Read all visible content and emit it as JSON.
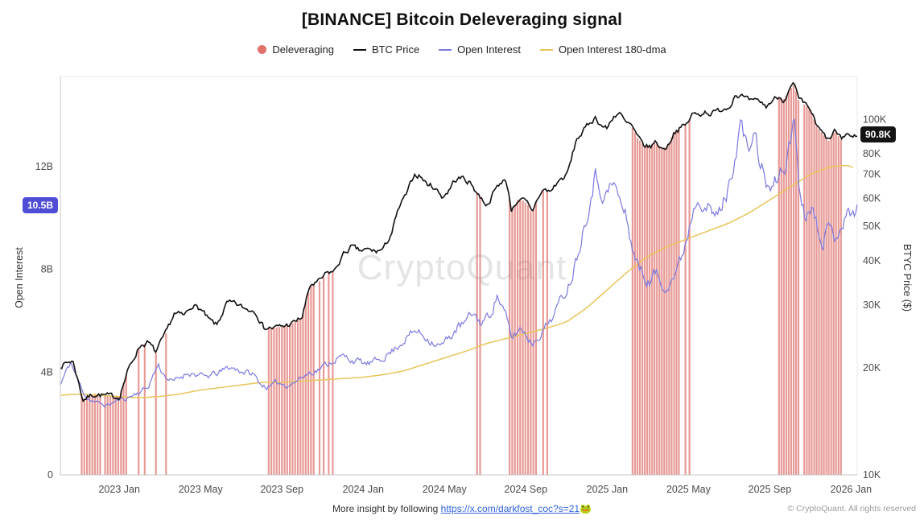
{
  "title": "[BINANCE] Bitcoin Deleveraging signal",
  "legend": {
    "items": [
      {
        "label": "Deleveraging",
        "color": "#e0716b",
        "marker": "circle"
      },
      {
        "label": "BTC Price",
        "color": "#111111",
        "marker": "line"
      },
      {
        "label": "Open Interest",
        "color": "#7b79e0",
        "marker": "line"
      },
      {
        "label": "Open Interest 180-dma",
        "color": "#e8c55a",
        "marker": "line"
      }
    ]
  },
  "watermark": "CryptoQuant",
  "axes": {
    "left_title": "Open Interest",
    "right_title": "BTYC Price ($)",
    "left_ticks": [
      {
        "v": 12,
        "label": "12B"
      },
      {
        "v": 8,
        "label": "8B"
      },
      {
        "v": 4,
        "label": "4B"
      },
      {
        "v": 0,
        "label": "0"
      }
    ],
    "right_ticks": [
      {
        "v": 100000,
        "label": "100K"
      },
      {
        "v": 80000,
        "label": "80K"
      },
      {
        "v": 70000,
        "label": "70K"
      },
      {
        "v": 60000,
        "label": "60K"
      },
      {
        "v": 50000,
        "label": "50K"
      },
      {
        "v": 40000,
        "label": "40K"
      },
      {
        "v": 30000,
        "label": "30K"
      },
      {
        "v": 20000,
        "label": "20K"
      },
      {
        "v": 10000,
        "label": "10K"
      }
    ],
    "x_ticks": [
      {
        "t": 2,
        "label": "2023 Jan"
      },
      {
        "t": 6,
        "label": "2023 May"
      },
      {
        "t": 10,
        "label": "2023 Sep"
      },
      {
        "t": 14,
        "label": "2024 Jan"
      },
      {
        "t": 18,
        "label": "2024 May"
      },
      {
        "t": 22,
        "label": "2024 Sep"
      },
      {
        "t": 26,
        "label": "2025 Jan"
      },
      {
        "t": 30,
        "label": "2025 May"
      },
      {
        "t": 34,
        "label": "2025 Sep"
      },
      {
        "t": 38,
        "label": "2026 Jan"
      }
    ]
  },
  "badges": {
    "left": {
      "value": 10.5,
      "label": "10.5B",
      "color": "#4f4cd6"
    },
    "right": {
      "value": 90800,
      "label": "90.8K",
      "color": "#141414"
    }
  },
  "footer": {
    "insight_prefix": "More insight by following ",
    "link": "https://x.com/darkfost_coc?s=21",
    "emoji": "🐸",
    "copyright": "© CryptoQuant. All rights reserved"
  },
  "chart_data": {
    "type": "line",
    "title": "[BINANCE] Bitcoin Deleveraging signal",
    "x_unit": "months since 2022-11",
    "x_domain": [
      -0.9,
      38.3
    ],
    "left_axis": {
      "label": "Open Interest",
      "range": [
        0,
        15.5
      ],
      "unit": "B"
    },
    "right_axis": {
      "label": "BTYC Price ($)",
      "scale": "log",
      "range": [
        10000,
        132000
      ]
    },
    "latest": {
      "open_interest": "10.5B",
      "btc_price": "90.8K"
    },
    "series": [
      {
        "name": "BTC Price",
        "axis": "right",
        "unit": "K USD",
        "color": "#111111",
        "anchors": [
          [
            -0.9,
            20.3
          ],
          [
            -0.3,
            21.0
          ],
          [
            0.2,
            16.3
          ],
          [
            0.8,
            16.9
          ],
          [
            1.6,
            16.6
          ],
          [
            2.0,
            16.6
          ],
          [
            2.4,
            19.5
          ],
          [
            2.7,
            21.2
          ],
          [
            3.0,
            23.1
          ],
          [
            3.4,
            23.6
          ],
          [
            3.8,
            22.1
          ],
          [
            4.3,
            25.0
          ],
          [
            4.7,
            28.4
          ],
          [
            5.2,
            28.0
          ],
          [
            5.6,
            30.2
          ],
          [
            6.0,
            29.2
          ],
          [
            6.4,
            27.2
          ],
          [
            6.8,
            26.3
          ],
          [
            7.3,
            30.4
          ],
          [
            7.7,
            30.2
          ],
          [
            8.2,
            29.3
          ],
          [
            8.7,
            29.0
          ],
          [
            9.1,
            26.0
          ],
          [
            9.6,
            25.9
          ],
          [
            10.1,
            26.2
          ],
          [
            10.6,
            26.8
          ],
          [
            11.0,
            27.8
          ],
          [
            11.4,
            34.2
          ],
          [
            11.8,
            34.8
          ],
          [
            12.2,
            36.8
          ],
          [
            12.6,
            37.5
          ],
          [
            13.0,
            41.5
          ],
          [
            13.4,
            43.8
          ],
          [
            13.8,
            42.6
          ],
          [
            14.2,
            42.9
          ],
          [
            14.6,
            42.5
          ],
          [
            15.0,
            43.1
          ],
          [
            15.4,
            48.0
          ],
          [
            15.8,
            57.0
          ],
          [
            16.2,
            62.5
          ],
          [
            16.5,
            70.0
          ],
          [
            16.8,
            69.5
          ],
          [
            17.1,
            66.0
          ],
          [
            17.5,
            64.5
          ],
          [
            17.9,
            60.5
          ],
          [
            18.2,
            63.0
          ],
          [
            18.5,
            67.5
          ],
          [
            18.9,
            68.5
          ],
          [
            19.3,
            66.0
          ],
          [
            19.7,
            61.0
          ],
          [
            20.1,
            57.5
          ],
          [
            20.5,
            63.5
          ],
          [
            20.9,
            68.0
          ],
          [
            21.1,
            64.5
          ],
          [
            21.3,
            55.5
          ],
          [
            21.6,
            59.5
          ],
          [
            21.9,
            59.0
          ],
          [
            22.1,
            57.5
          ],
          [
            22.3,
            54.5
          ],
          [
            22.6,
            60.5
          ],
          [
            22.9,
            63.5
          ],
          [
            23.2,
            62.5
          ],
          [
            23.6,
            67.0
          ],
          [
            24.0,
            69.5
          ],
          [
            24.2,
            75.5
          ],
          [
            24.5,
            88.0
          ],
          [
            24.8,
            92.0
          ],
          [
            25.1,
            97.0
          ],
          [
            25.4,
            101.5
          ],
          [
            25.7,
            96.5
          ],
          [
            26.0,
            94.0
          ],
          [
            26.3,
            102.0
          ],
          [
            26.6,
            104.5
          ],
          [
            26.9,
            97.5
          ],
          [
            27.2,
            96.0
          ],
          [
            27.5,
            88.5
          ],
          [
            27.8,
            84.5
          ],
          [
            28.1,
            83.5
          ],
          [
            28.4,
            86.5
          ],
          [
            28.7,
            82.5
          ],
          [
            29.0,
            84.5
          ],
          [
            29.3,
            92.5
          ],
          [
            29.6,
            94.5
          ],
          [
            29.9,
            96.5
          ],
          [
            30.2,
            103.5
          ],
          [
            30.5,
            103.0
          ],
          [
            30.8,
            105.5
          ],
          [
            31.1,
            104.0
          ],
          [
            31.4,
            105.0
          ],
          [
            31.7,
            107.5
          ],
          [
            32.0,
            108.5
          ],
          [
            32.3,
            118.0
          ],
          [
            32.6,
            116.5
          ],
          [
            32.9,
            113.0
          ],
          [
            33.2,
            111.5
          ],
          [
            33.5,
            112.5
          ],
          [
            33.8,
            108.5
          ],
          [
            34.1,
            112.5
          ],
          [
            34.4,
            116.0
          ],
          [
            34.7,
            114.0
          ],
          [
            35.0,
            121.5
          ],
          [
            35.2,
            125.5
          ],
          [
            35.4,
            113.5
          ],
          [
            35.7,
            110.0
          ],
          [
            36.0,
            106.5
          ],
          [
            36.3,
            95.5
          ],
          [
            36.6,
            91.0
          ],
          [
            36.9,
            87.0
          ],
          [
            37.2,
            93.0
          ],
          [
            37.5,
            87.5
          ],
          [
            37.8,
            91.5
          ],
          [
            38.1,
            88.5
          ],
          [
            38.3,
            90.8
          ]
        ]
      },
      {
        "name": "Open Interest",
        "axis": "left",
        "unit": "B USD",
        "color": "#7b79e0",
        "anchors": [
          [
            -0.9,
            3.5
          ],
          [
            -0.4,
            4.4
          ],
          [
            0.0,
            3.6
          ],
          [
            0.4,
            3.0
          ],
          [
            0.9,
            2.8
          ],
          [
            1.4,
            2.7
          ],
          [
            1.9,
            2.9
          ],
          [
            2.4,
            3.0
          ],
          [
            2.9,
            3.2
          ],
          [
            3.4,
            3.4
          ],
          [
            3.9,
            4.3
          ],
          [
            4.2,
            3.9
          ],
          [
            4.6,
            3.6
          ],
          [
            5.0,
            3.8
          ],
          [
            5.4,
            4.0
          ],
          [
            5.8,
            3.9
          ],
          [
            6.2,
            3.8
          ],
          [
            6.6,
            3.9
          ],
          [
            7.0,
            4.0
          ],
          [
            7.4,
            4.2
          ],
          [
            7.8,
            4.1
          ],
          [
            8.2,
            4.0
          ],
          [
            8.6,
            3.9
          ],
          [
            9.0,
            3.5
          ],
          [
            9.4,
            3.4
          ],
          [
            9.8,
            3.6
          ],
          [
            10.2,
            3.5
          ],
          [
            10.6,
            3.6
          ],
          [
            11.0,
            3.8
          ],
          [
            11.4,
            4.0
          ],
          [
            11.8,
            4.1
          ],
          [
            12.2,
            4.3
          ],
          [
            12.6,
            4.5
          ],
          [
            13.0,
            4.6
          ],
          [
            13.4,
            4.5
          ],
          [
            13.8,
            4.4
          ],
          [
            14.2,
            4.3
          ],
          [
            14.6,
            4.4
          ],
          [
            15.0,
            4.6
          ],
          [
            15.4,
            4.8
          ],
          [
            15.8,
            5.1
          ],
          [
            16.2,
            5.4
          ],
          [
            16.6,
            5.6
          ],
          [
            17.0,
            5.4
          ],
          [
            17.4,
            5.2
          ],
          [
            17.8,
            5.0
          ],
          [
            18.2,
            5.3
          ],
          [
            18.6,
            5.7
          ],
          [
            19.0,
            5.9
          ],
          [
            19.4,
            6.3
          ],
          [
            19.8,
            5.9
          ],
          [
            20.2,
            6.2
          ],
          [
            20.6,
            7.0
          ],
          [
            21.0,
            6.2
          ],
          [
            21.3,
            5.3
          ],
          [
            21.7,
            5.7
          ],
          [
            22.0,
            5.5
          ],
          [
            22.3,
            5.1
          ],
          [
            22.7,
            5.5
          ],
          [
            23.0,
            5.8
          ],
          [
            23.4,
            6.3
          ],
          [
            23.8,
            6.9
          ],
          [
            24.2,
            7.6
          ],
          [
            24.6,
            8.8
          ],
          [
            25.0,
            10.2
          ],
          [
            25.4,
            11.7
          ],
          [
            25.7,
            11.1
          ],
          [
            26.0,
            10.9
          ],
          [
            26.3,
            11.4
          ],
          [
            26.6,
            10.7
          ],
          [
            26.9,
            10.1
          ],
          [
            27.2,
            9.0
          ],
          [
            27.5,
            8.2
          ],
          [
            27.8,
            7.7
          ],
          [
            28.1,
            7.5
          ],
          [
            28.4,
            7.9
          ],
          [
            28.7,
            7.3
          ],
          [
            29.0,
            7.5
          ],
          [
            29.3,
            7.8
          ],
          [
            29.6,
            8.3
          ],
          [
            29.9,
            9.2
          ],
          [
            30.2,
            10.3
          ],
          [
            30.5,
            11.0
          ],
          [
            30.8,
            10.6
          ],
          [
            31.1,
            10.2
          ],
          [
            31.4,
            10.0
          ],
          [
            31.7,
            10.6
          ],
          [
            32.0,
            11.2
          ],
          [
            32.3,
            12.6
          ],
          [
            32.6,
            13.8
          ],
          [
            32.9,
            12.4
          ],
          [
            33.2,
            13.4
          ],
          [
            33.5,
            12.2
          ],
          [
            33.8,
            11.4
          ],
          [
            34.1,
            11.0
          ],
          [
            34.4,
            11.6
          ],
          [
            34.7,
            12.0
          ],
          [
            35.0,
            12.8
          ],
          [
            35.2,
            14.2
          ],
          [
            35.4,
            11.6
          ],
          [
            35.7,
            10.1
          ],
          [
            36.0,
            10.6
          ],
          [
            36.3,
            9.9
          ],
          [
            36.6,
            9.2
          ],
          [
            36.9,
            9.6
          ],
          [
            37.2,
            9.3
          ],
          [
            37.5,
            9.8
          ],
          [
            37.8,
            10.1
          ],
          [
            38.1,
            10.2
          ],
          [
            38.3,
            10.5
          ]
        ]
      },
      {
        "name": "Open Interest 180-dma",
        "axis": "left",
        "unit": "B USD",
        "color": "#e8c55a",
        "anchors": [
          [
            -0.9,
            3.1
          ],
          [
            0,
            3.15
          ],
          [
            1,
            3.1
          ],
          [
            2,
            3.05
          ],
          [
            3,
            3.0
          ],
          [
            4,
            3.05
          ],
          [
            5,
            3.15
          ],
          [
            6,
            3.3
          ],
          [
            7,
            3.4
          ],
          [
            8,
            3.5
          ],
          [
            9,
            3.6
          ],
          [
            10,
            3.6
          ],
          [
            11,
            3.65
          ],
          [
            12,
            3.7
          ],
          [
            13,
            3.75
          ],
          [
            14,
            3.8
          ],
          [
            15,
            3.9
          ],
          [
            16,
            4.05
          ],
          [
            17,
            4.3
          ],
          [
            18,
            4.55
          ],
          [
            19,
            4.8
          ],
          [
            20,
            5.1
          ],
          [
            21,
            5.3
          ],
          [
            22,
            5.5
          ],
          [
            23,
            5.7
          ],
          [
            24,
            5.95
          ],
          [
            25,
            6.5
          ],
          [
            26,
            7.2
          ],
          [
            27,
            7.9
          ],
          [
            28,
            8.5
          ],
          [
            29,
            8.9
          ],
          [
            30,
            9.2
          ],
          [
            31,
            9.5
          ],
          [
            32,
            9.8
          ],
          [
            33,
            10.2
          ],
          [
            34,
            10.7
          ],
          [
            35,
            11.2
          ],
          [
            36,
            11.7
          ],
          [
            37,
            12.0
          ],
          [
            37.8,
            12.05
          ],
          [
            38.3,
            11.9
          ]
        ]
      }
    ],
    "deleveraging": {
      "color": "#dd6f69",
      "opacity": 0.7,
      "bar_tops_follow": "BTC Price",
      "clusters": [
        [
          0.15,
          1.1,
          0.13
        ],
        [
          1.3,
          2.35,
          0.13
        ],
        [
          9.35,
          11.6,
          0.13
        ],
        [
          21.2,
          22.5,
          0.13
        ],
        [
          27.25,
          29.55,
          0.12
        ],
        [
          34.45,
          35.5,
          0.12
        ],
        [
          35.7,
          37.55,
          0.12
        ]
      ],
      "singles": [
        2.95,
        3.25,
        3.8,
        4.3,
        11.85,
        12.05,
        12.3,
        12.5,
        19.6,
        19.75,
        22.85,
        23.05,
        29.85,
        30.05
      ]
    }
  }
}
